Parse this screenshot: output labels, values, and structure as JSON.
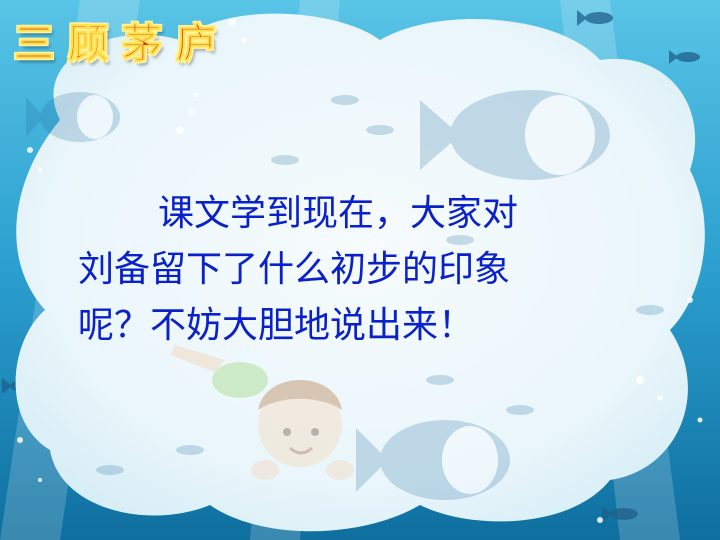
{
  "title": {
    "chars": [
      "三",
      "顾",
      "茅",
      "庐"
    ]
  },
  "body": {
    "line1": "课文学到现在，大家对",
    "line2": "刘备留下了什么初步的印象",
    "line3": "呢？不妨大胆地说出来！"
  },
  "colors": {
    "ocean_dark": "#0f6f9f",
    "ocean_light": "#3fb0d8",
    "cloud": "#eaf6fb",
    "text": "#0a20c8",
    "title_red": "#d2261b",
    "title_outline": "#ffe14d"
  },
  "icons": [
    "fish-icon",
    "diving-child-illustration",
    "bubble-icon"
  ]
}
